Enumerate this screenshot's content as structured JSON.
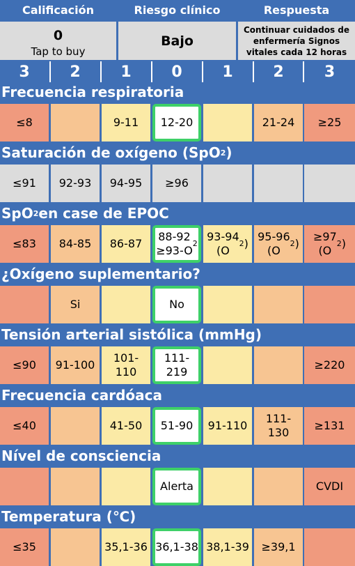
{
  "header": {
    "score_label": "Calificación",
    "risk_label": "Riesgo clínico",
    "response_label": "Respuesta",
    "score_value": "0",
    "buy_label": "Tap to buy",
    "risk_value": "Bajo",
    "response_value": "Continuar cuidados de enfermería Signos vitales cada 12 horas"
  },
  "scale": [
    "3",
    "2",
    "1",
    "0",
    "1",
    "2",
    "3"
  ],
  "parameters": [
    {
      "title": "Frecuencia respiratoria",
      "cells": [
        {
          "text": "≤8",
          "color": "red"
        },
        {
          "text": "",
          "color": "org"
        },
        {
          "text": "9-11",
          "color": "yel"
        },
        {
          "text": "12-20",
          "color": "sel"
        },
        {
          "text": "",
          "color": "yel"
        },
        {
          "text": "21-24",
          "color": "org"
        },
        {
          "text": "≥25",
          "color": "red"
        }
      ]
    },
    {
      "title": "Saturación de oxígeno (SpO₂)",
      "cells": [
        {
          "text": "≤91",
          "color": "gry"
        },
        {
          "text": "92-93",
          "color": "gry"
        },
        {
          "text": "94-95",
          "color": "gry"
        },
        {
          "text": "≥96",
          "color": "gry"
        },
        {
          "text": "",
          "color": "gry"
        },
        {
          "text": "",
          "color": "gry"
        },
        {
          "text": "",
          "color": "gry"
        }
      ]
    },
    {
      "title": "SpO₂ en case de EPOC",
      "cells": [
        {
          "text": "≤83",
          "color": "red"
        },
        {
          "text": "84-85",
          "color": "org"
        },
        {
          "text": "86-87",
          "color": "yel"
        },
        {
          "text": "88-92\n≥93-O₂",
          "color": "sel"
        },
        {
          "text": "93-94\n(O₂)",
          "color": "yel"
        },
        {
          "text": "95-96\n(O₂)",
          "color": "org"
        },
        {
          "text": "≥97\n(O₂)",
          "color": "red"
        }
      ]
    },
    {
      "title": "¿Oxígeno suplementario?",
      "cells": [
        {
          "text": "",
          "color": "red"
        },
        {
          "text": "Si",
          "color": "org"
        },
        {
          "text": "",
          "color": "yel"
        },
        {
          "text": "No",
          "color": "sel"
        },
        {
          "text": "",
          "color": "yel"
        },
        {
          "text": "",
          "color": "org"
        },
        {
          "text": "",
          "color": "red"
        }
      ]
    },
    {
      "title": "Tensión arterial sistólica (mmHg)",
      "cells": [
        {
          "text": "≤90",
          "color": "red"
        },
        {
          "text": "91-100",
          "color": "org"
        },
        {
          "text": "101-\n110",
          "color": "yel"
        },
        {
          "text": "111-\n219",
          "color": "sel"
        },
        {
          "text": "",
          "color": "yel"
        },
        {
          "text": "",
          "color": "org"
        },
        {
          "text": "≥220",
          "color": "red"
        }
      ]
    },
    {
      "title": "Frecuencia cardóaca",
      "cells": [
        {
          "text": "≤40",
          "color": "red"
        },
        {
          "text": "",
          "color": "org"
        },
        {
          "text": "41-50",
          "color": "yel"
        },
        {
          "text": "51-90",
          "color": "sel"
        },
        {
          "text": "91-110",
          "color": "yel"
        },
        {
          "text": "111-\n130",
          "color": "org"
        },
        {
          "text": "≥131",
          "color": "red"
        }
      ]
    },
    {
      "title": "Nível de consciencia",
      "cells": [
        {
          "text": "",
          "color": "red"
        },
        {
          "text": "",
          "color": "org"
        },
        {
          "text": "",
          "color": "yel"
        },
        {
          "text": "Alerta",
          "color": "sel"
        },
        {
          "text": "",
          "color": "yel"
        },
        {
          "text": "",
          "color": "org"
        },
        {
          "text": "CVDI",
          "color": "red"
        }
      ]
    },
    {
      "title": "Temperatura (℃)",
      "cells": [
        {
          "text": "≤35",
          "color": "red"
        },
        {
          "text": "",
          "color": "org"
        },
        {
          "text": "35,1-36",
          "color": "yel"
        },
        {
          "text": "36,1-38",
          "color": "sel"
        },
        {
          "text": "38,1-39",
          "color": "yel"
        },
        {
          "text": "≥39,1",
          "color": "org"
        },
        {
          "text": "",
          "color": "red"
        }
      ]
    }
  ]
}
